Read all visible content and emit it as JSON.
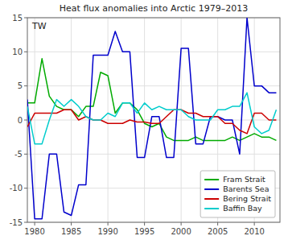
{
  "chart_data": {
    "type": "line",
    "title": "Heat flux anomalies into Arctic 1979–2013",
    "ylabel": "TW",
    "x": [
      1979,
      1980,
      1981,
      1982,
      1983,
      1984,
      1985,
      1986,
      1987,
      1988,
      1989,
      1990,
      1991,
      1992,
      1993,
      1994,
      1995,
      1996,
      1997,
      1998,
      1999,
      2000,
      2001,
      2002,
      2003,
      2004,
      2005,
      2006,
      2007,
      2008,
      2009,
      2010,
      2011,
      2012,
      2013
    ],
    "series": [
      {
        "name": "Fram Strait",
        "color": "#00aa00",
        "values": [
          2.5,
          2.5,
          9.0,
          3.5,
          2.0,
          1.5,
          1.5,
          0.5,
          2.0,
          2.0,
          7.0,
          6.5,
          1.0,
          2.5,
          2.5,
          1.5,
          -0.5,
          -1.0,
          -0.5,
          -2.5,
          -3.0,
          -3.0,
          -3.0,
          -2.5,
          -3.0,
          -3.0,
          -3.0,
          -3.0,
          -2.5,
          -3.0,
          -2.5,
          -2.0,
          -2.5,
          -2.5,
          -3.0
        ]
      },
      {
        "name": "Barents Sea",
        "color": "#0000cc",
        "values": [
          3.0,
          -14.5,
          -14.5,
          -5.0,
          -5.0,
          -13.5,
          -14.0,
          -9.5,
          -9.5,
          9.5,
          9.5,
          9.5,
          13.0,
          10.0,
          10.0,
          -5.5,
          -5.5,
          0.5,
          0.5,
          -5.5,
          -5.5,
          10.5,
          10.5,
          -3.5,
          -3.5,
          0.5,
          0.5,
          0.0,
          0.0,
          -5.0,
          15.0,
          5.0,
          5.0,
          4.0,
          4.0
        ]
      },
      {
        "name": "Bering Strait",
        "color": "#cc0000",
        "values": [
          -1.0,
          1.0,
          1.0,
          1.0,
          1.0,
          1.5,
          1.5,
          0.0,
          0.5,
          0.0,
          0.0,
          -0.5,
          -0.5,
          -0.5,
          0.0,
          -0.3,
          -0.3,
          -0.5,
          -0.5,
          0.5,
          1.5,
          1.5,
          1.0,
          1.0,
          0.5,
          0.5,
          0.5,
          -0.5,
          -0.5,
          -1.5,
          -2.0,
          1.0,
          1.0,
          0.0,
          0.0
        ]
      },
      {
        "name": "Baffin Bay",
        "color": "#00cccc",
        "values": [
          2.0,
          -3.5,
          -3.5,
          0.0,
          3.0,
          2.0,
          3.0,
          2.0,
          0.5,
          0.0,
          0.0,
          1.0,
          0.5,
          2.5,
          2.5,
          1.0,
          2.5,
          1.5,
          2.0,
          1.5,
          1.5,
          1.5,
          0.5,
          0.0,
          0.0,
          0.0,
          1.5,
          1.5,
          2.0,
          2.0,
          4.0,
          -1.0,
          -2.0,
          -1.5,
          1.5
        ]
      }
    ],
    "xlim": [
      1979,
      2013.5
    ],
    "ylim": [
      -15,
      15
    ],
    "xticks": [
      1980,
      1985,
      1990,
      1995,
      2000,
      2005,
      2010
    ],
    "yticks": [
      -15,
      -10,
      -5,
      0,
      5,
      10,
      15
    ],
    "grid": true,
    "legend": "lower right"
  }
}
